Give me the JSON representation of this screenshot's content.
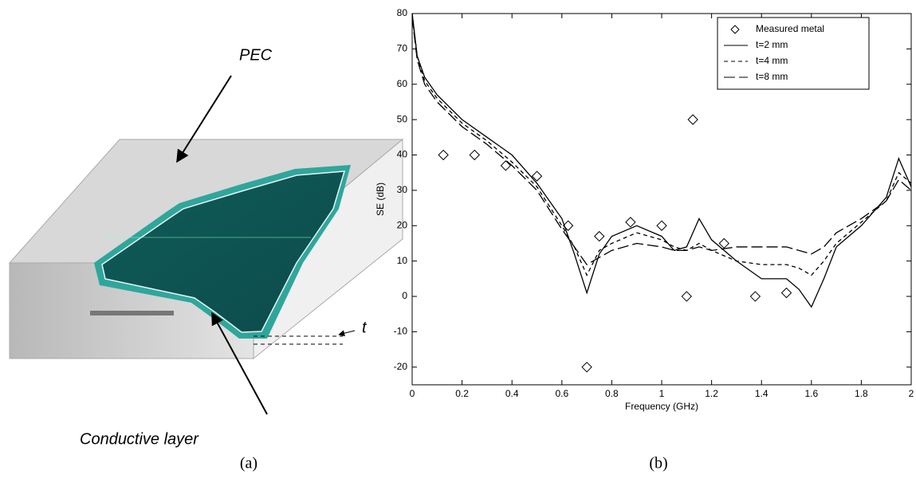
{
  "diagram": {
    "top_label": "PEC",
    "layer_label": "Conductive layer",
    "thickness_label": "t"
  },
  "captions": [
    "(a)",
    "(b)"
  ],
  "chart_data": {
    "type": "line",
    "x_label": "Frequency (GHz)",
    "y_label": "SE (dB)",
    "xlim": [
      0,
      2
    ],
    "ylim": [
      -25,
      80
    ],
    "xticks": [
      0,
      0.2,
      0.4,
      0.6,
      0.8,
      1,
      1.2,
      1.4,
      1.6,
      1.8,
      2
    ],
    "yticks": [
      -20,
      -10,
      0,
      10,
      20,
      30,
      40,
      50,
      60,
      70,
      80
    ],
    "legend": "upper right",
    "x": [
      0,
      0.02,
      0.05,
      0.1,
      0.2,
      0.3,
      0.4,
      0.5,
      0.6,
      0.65,
      0.7,
      0.75,
      0.8,
      0.9,
      1.0,
      1.05,
      1.1,
      1.15,
      1.2,
      1.3,
      1.4,
      1.5,
      1.55,
      1.6,
      1.65,
      1.7,
      1.8,
      1.9,
      1.95,
      2.0
    ],
    "series": [
      {
        "name": "Measured metal",
        "color": "#000000",
        "mode": "markers",
        "x": [
          0.125,
          0.25,
          0.375,
          0.5,
          0.625,
          0.7,
          0.75,
          0.875,
          1.0,
          1.1,
          1.125,
          1.25,
          1.375,
          1.5
        ],
        "values": [
          40,
          40,
          37,
          34,
          20,
          -20,
          17,
          21,
          20,
          0,
          50,
          15,
          0,
          1
        ]
      },
      {
        "name": "t=2 mm",
        "color": "#000000",
        "mode": "line",
        "dash": "solid",
        "values": [
          80,
          68,
          62,
          57,
          50,
          45,
          40,
          32,
          22,
          12,
          1,
          12,
          17,
          20,
          17,
          13,
          14,
          22,
          16,
          10,
          5,
          5,
          2,
          -3,
          5,
          14,
          20,
          28,
          39,
          31
        ]
      },
      {
        "name": "t=4 mm",
        "color": "#000000",
        "mode": "line",
        "dash": "short",
        "values": [
          80,
          68,
          61,
          56,
          49,
          44,
          38,
          31,
          20,
          14,
          6,
          13,
          15,
          18,
          16,
          14,
          13,
          15,
          13,
          10,
          9,
          9,
          8,
          6,
          10,
          15,
          21,
          27,
          35,
          32
        ]
      },
      {
        "name": "t=8 mm",
        "color": "#000000",
        "mode": "line",
        "dash": "long",
        "values": [
          79,
          67,
          60,
          55,
          48,
          43,
          37,
          30,
          19,
          14,
          9,
          11,
          13,
          15,
          14,
          13,
          13,
          14,
          13,
          14,
          14,
          14,
          13,
          12,
          14,
          18,
          22,
          27,
          33,
          30
        ]
      }
    ]
  }
}
